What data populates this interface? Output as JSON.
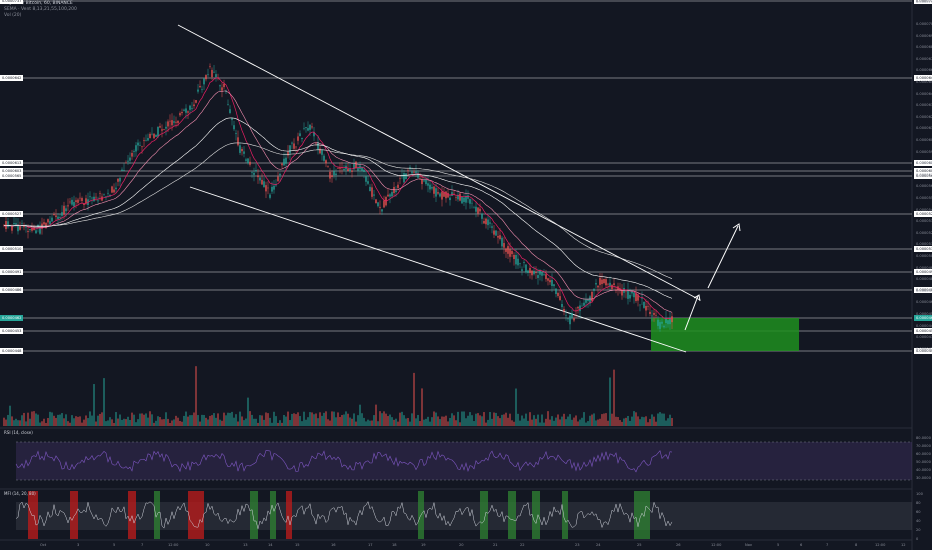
{
  "legend": {
    "main": "Skycoin / Bitcoin, 60, BINANCE",
    "ema": "SEMA · Vent  8,13,21,55,100,200",
    "vol": "Vol (20)"
  },
  "rsi_title": "RSI (14, close)",
  "mfi_title": "MFI (14, 20, 80)",
  "price_axis": {
    "top_label": "0.0000750",
    "ticks": [
      "0.0000700",
      "0.0000690",
      "0.0000680",
      "0.0000670",
      "0.0000660",
      "0.0000650",
      "0.0000640",
      "0.0000630",
      "0.0000620",
      "0.0000610",
      "0.0000600",
      "0.0000590",
      "0.0000580",
      "0.0000570",
      "0.0000560",
      "0.0000550",
      "0.0000540",
      "0.0000530",
      "0.0000520",
      "0.0000510",
      "0.0000500",
      "0.0000490",
      "0.0000480",
      "0.0000470",
      "0.0000460",
      "0.0000450",
      "0.0000440",
      "0.0000430",
      "0.0000420"
    ],
    "levels": [
      {
        "label": "0.0000737",
        "kind": "white"
      },
      {
        "label": "0.0000642",
        "kind": "white"
      },
      {
        "label": "0.0000613",
        "kind": "white"
      },
      {
        "label": "0.0000603",
        "kind": "white"
      },
      {
        "label": "0.0000565",
        "kind": "white"
      },
      {
        "label": "0.0000527",
        "kind": "white"
      },
      {
        "label": "0.0000510",
        "kind": "white"
      },
      {
        "label": "0.0000491",
        "kind": "white"
      },
      {
        "label": "0.0000486",
        "kind": "white"
      },
      {
        "label": "0.0000462",
        "kind": "green"
      },
      {
        "label": "0.0000453",
        "kind": "white"
      },
      {
        "label": "0.0000448",
        "kind": "white"
      }
    ]
  },
  "rsi_axis": [
    "80.0000",
    "70.0000",
    "60.0000",
    "50.0000",
    "40.0000",
    "30.0000"
  ],
  "mfi_axis": [
    "100",
    "80",
    "60",
    "40",
    "20",
    "0"
  ],
  "x_axis": [
    "Oct",
    "3",
    "5",
    "7",
    "12:00",
    "10",
    "13",
    "14",
    "15",
    "16",
    "17",
    "18",
    "19",
    "20",
    "21",
    "22",
    "23",
    "24",
    "25",
    "26",
    "12:00",
    "Nov",
    "5",
    "6",
    "7",
    "8",
    "12:00",
    "12",
    "14",
    "15",
    "12:00"
  ],
  "colors": {
    "bg": "#131722",
    "up": "#26a69a",
    "down": "#ef5350",
    "ema": "#e91e63",
    "line": "#ffffff",
    "zone": "#1e8e1e",
    "rsi": "#7e57c2",
    "mfi_up": "#2e7d32",
    "mfi_down": "#b71c1c"
  }
}
